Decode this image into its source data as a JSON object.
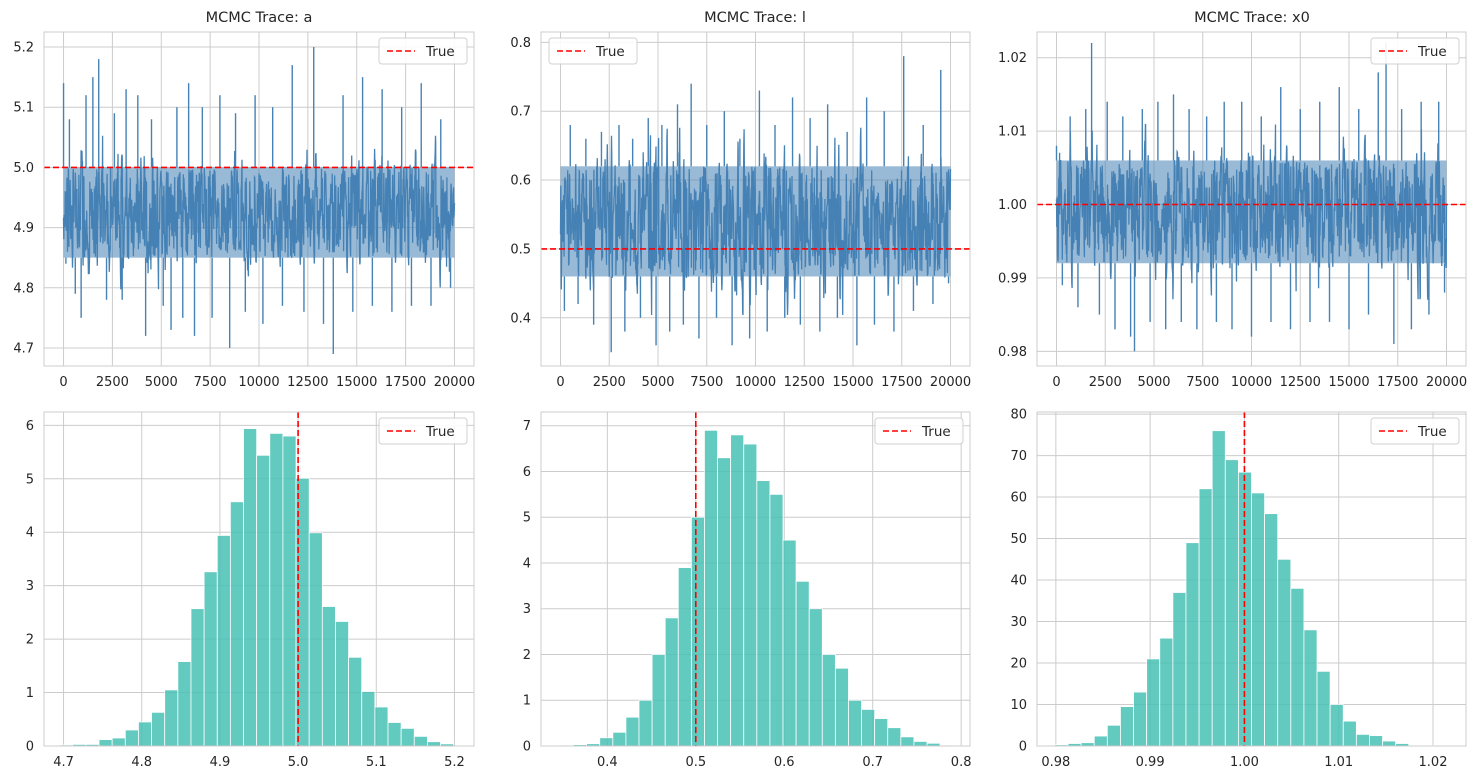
{
  "chart_data": [
    {
      "type": "line",
      "title": "MCMC Trace: a",
      "xlabel": "",
      "ylabel": "",
      "xlim": [
        -1000,
        21000
      ],
      "ylim": [
        4.67,
        5.225
      ],
      "xticks": [
        0,
        2500,
        5000,
        7500,
        10000,
        12500,
        15000,
        17500,
        20000
      ],
      "xtick_labels": [
        "0",
        "2500",
        "5000",
        "7500",
        "10000",
        "12500",
        "15000",
        "17500",
        "20000"
      ],
      "yticks": [
        4.7,
        4.8,
        4.9,
        5.0,
        5.1,
        5.2
      ],
      "ytick_labels": [
        "4.7",
        "4.8",
        "4.9",
        "5.0",
        "5.1",
        "5.2"
      ],
      "grid": true,
      "series": [
        {
          "x_range": [
            0,
            20000
          ],
          "band_low": 4.85,
          "band_high": 5.0,
          "spikes": [
            [
              0,
              5.14
            ],
            [
              120,
              4.84
            ],
            [
              300,
              5.08
            ],
            [
              600,
              4.79
            ],
            [
              900,
              4.75
            ],
            [
              1150,
              5.12
            ],
            [
              1500,
              5.15
            ],
            [
              1800,
              5.18
            ],
            [
              2200,
              4.78
            ],
            [
              2600,
              5.09
            ],
            [
              3000,
              4.78
            ],
            [
              3200,
              5.13
            ],
            [
              3800,
              5.12
            ],
            [
              4200,
              4.72
            ],
            [
              4500,
              5.08
            ],
            [
              5100,
              4.77
            ],
            [
              5500,
              4.73
            ],
            [
              5800,
              5.1
            ],
            [
              6100,
              4.75
            ],
            [
              6400,
              5.14
            ],
            [
              6700,
              4.72
            ],
            [
              7100,
              5.1
            ],
            [
              7600,
              4.75
            ],
            [
              8000,
              5.12
            ],
            [
              8500,
              4.7
            ],
            [
              8800,
              5.09
            ],
            [
              9300,
              4.76
            ],
            [
              9800,
              5.12
            ],
            [
              10200,
              4.74
            ],
            [
              10700,
              5.1
            ],
            [
              11200,
              4.77
            ],
            [
              11700,
              5.17
            ],
            [
              12300,
              4.76
            ],
            [
              12800,
              5.2
            ],
            [
              13300,
              4.74
            ],
            [
              13800,
              4.69
            ],
            [
              14300,
              5.12
            ],
            [
              14800,
              4.76
            ],
            [
              15300,
              5.15
            ],
            [
              15800,
              4.77
            ],
            [
              16300,
              5.13
            ],
            [
              16800,
              4.76
            ],
            [
              17300,
              5.1
            ],
            [
              17800,
              4.77
            ],
            [
              18300,
              5.14
            ],
            [
              18800,
              4.77
            ],
            [
              19300,
              5.08
            ],
            [
              19800,
              4.8
            ]
          ]
        }
      ],
      "hline": {
        "value": 5.0,
        "label": "True"
      },
      "legend": "top-right"
    },
    {
      "type": "line",
      "title": "MCMC Trace: l",
      "xlabel": "",
      "ylabel": "",
      "xlim": [
        -1000,
        21000
      ],
      "ylim": [
        0.33,
        0.815
      ],
      "xticks": [
        0,
        2500,
        5000,
        7500,
        10000,
        12500,
        15000,
        17500,
        20000
      ],
      "xtick_labels": [
        "0",
        "2500",
        "5000",
        "7500",
        "10000",
        "12500",
        "15000",
        "17500",
        "20000"
      ],
      "yticks": [
        0.4,
        0.5,
        0.6,
        0.7,
        0.8
      ],
      "ytick_labels": [
        "0.4",
        "0.5",
        "0.6",
        "0.7",
        "0.8"
      ],
      "grid": true,
      "series": [
        {
          "x_range": [
            0,
            20000
          ],
          "band_low": 0.46,
          "band_high": 0.62,
          "spikes": [
            [
              0,
              0.62
            ],
            [
              200,
              0.41
            ],
            [
              500,
              0.68
            ],
            [
              900,
              0.42
            ],
            [
              1300,
              0.66
            ],
            [
              1700,
              0.39
            ],
            [
              2100,
              0.67
            ],
            [
              2600,
              0.35
            ],
            [
              3000,
              0.68
            ],
            [
              3300,
              0.38
            ],
            [
              3700,
              0.66
            ],
            [
              4100,
              0.4
            ],
            [
              4500,
              0.69
            ],
            [
              4900,
              0.36
            ],
            [
              5200,
              0.68
            ],
            [
              5600,
              0.38
            ],
            [
              6000,
              0.71
            ],
            [
              6300,
              0.39
            ],
            [
              6700,
              0.74
            ],
            [
              7100,
              0.37
            ],
            [
              7500,
              0.68
            ],
            [
              8000,
              0.4
            ],
            [
              8400,
              0.7
            ],
            [
              8800,
              0.36
            ],
            [
              9200,
              0.66
            ],
            [
              9700,
              0.37
            ],
            [
              10200,
              0.73
            ],
            [
              10600,
              0.38
            ],
            [
              11000,
              0.68
            ],
            [
              11500,
              0.4
            ],
            [
              11900,
              0.72
            ],
            [
              12300,
              0.39
            ],
            [
              12800,
              0.69
            ],
            [
              13300,
              0.38
            ],
            [
              13700,
              0.71
            ],
            [
              14200,
              0.4
            ],
            [
              14700,
              0.67
            ],
            [
              15200,
              0.36
            ],
            [
              15700,
              0.72
            ],
            [
              16100,
              0.39
            ],
            [
              16600,
              0.7
            ],
            [
              17100,
              0.38
            ],
            [
              17600,
              0.78
            ],
            [
              18100,
              0.41
            ],
            [
              18600,
              0.68
            ],
            [
              19100,
              0.42
            ],
            [
              19500,
              0.76
            ],
            [
              19900,
              0.45
            ]
          ]
        }
      ],
      "hline": {
        "value": 0.5,
        "label": "True"
      },
      "legend": "top-left"
    },
    {
      "type": "line",
      "title": "MCMC Trace: x0",
      "xlabel": "",
      "ylabel": "",
      "xlim": [
        -1000,
        21000
      ],
      "ylim": [
        0.978,
        1.0235
      ],
      "xticks": [
        0,
        2500,
        5000,
        7500,
        10000,
        12500,
        15000,
        17500,
        20000
      ],
      "xtick_labels": [
        "0",
        "2500",
        "5000",
        "7500",
        "10000",
        "12500",
        "15000",
        "17500",
        "20000"
      ],
      "yticks": [
        0.98,
        0.99,
        1.0,
        1.01,
        1.02
      ],
      "ytick_labels": [
        "0.98",
        "0.99",
        "1.00",
        "1.01",
        "1.02"
      ],
      "grid": true,
      "series": [
        {
          "x_range": [
            0,
            20000
          ],
          "band_low": 0.992,
          "band_high": 1.006,
          "spikes": [
            [
              0,
              1.008
            ],
            [
              300,
              0.989
            ],
            [
              700,
              1.012
            ],
            [
              1100,
              0.986
            ],
            [
              1500,
              1.013
            ],
            [
              1800,
              1.022
            ],
            [
              2200,
              0.985
            ],
            [
              2600,
              1.014
            ],
            [
              3000,
              0.983
            ],
            [
              3400,
              1.012
            ],
            [
              3800,
              0.982
            ],
            [
              4000,
              0.98
            ],
            [
              4400,
              1.013
            ],
            [
              4800,
              0.984
            ],
            [
              5200,
              1.014
            ],
            [
              5600,
              0.983
            ],
            [
              6000,
              1.015
            ],
            [
              6400,
              0.984
            ],
            [
              6800,
              1.013
            ],
            [
              7200,
              0.983
            ],
            [
              7700,
              1.012
            ],
            [
              8200,
              0.984
            ],
            [
              8600,
              1.014
            ],
            [
              9000,
              0.983
            ],
            [
              9500,
              1.014
            ],
            [
              10000,
              0.982
            ],
            [
              10500,
              1.012
            ],
            [
              11000,
              0.984
            ],
            [
              11500,
              1.016
            ],
            [
              12000,
              0.983
            ],
            [
              12500,
              1.013
            ],
            [
              13000,
              0.984
            ],
            [
              13500,
              1.014
            ],
            [
              14000,
              0.984
            ],
            [
              14500,
              1.016
            ],
            [
              15000,
              0.983
            ],
            [
              15500,
              1.013
            ],
            [
              16000,
              0.985
            ],
            [
              16500,
              1.018
            ],
            [
              16900,
              1.022
            ],
            [
              17300,
              0.981
            ],
            [
              17700,
              1.013
            ],
            [
              18200,
              0.983
            ],
            [
              18700,
              1.014
            ],
            [
              19100,
              0.985
            ],
            [
              19600,
              1.014
            ],
            [
              19900,
              0.988
            ]
          ]
        }
      ],
      "hline": {
        "value": 1.0,
        "label": "True"
      },
      "legend": "top-right"
    },
    {
      "type": "bar",
      "title": "",
      "xlabel": "",
      "ylabel": "",
      "xlim": [
        4.675,
        5.225
      ],
      "ylim": [
        0,
        6.25
      ],
      "xticks": [
        4.7,
        4.8,
        4.9,
        5.0,
        5.1,
        5.2
      ],
      "xtick_labels": [
        "4.7",
        "4.8",
        "4.9",
        "5.0",
        "5.1",
        "5.2"
      ],
      "yticks": [
        0,
        1,
        2,
        3,
        4,
        5,
        6
      ],
      "ytick_labels": [
        "0",
        "1",
        "2",
        "3",
        "4",
        "5",
        "6"
      ],
      "grid": true,
      "bin_start": 4.695,
      "bin_width": 0.0168,
      "values": [
        0.02,
        0.03,
        0.03,
        0.12,
        0.15,
        0.3,
        0.45,
        0.63,
        1.05,
        1.58,
        2.57,
        3.26,
        3.94,
        4.57,
        5.94,
        5.44,
        5.85,
        5.8,
        5.01,
        3.99,
        2.61,
        2.33,
        1.66,
        1.02,
        0.73,
        0.44,
        0.33,
        0.18,
        0.08,
        0.04
      ],
      "vline": {
        "value": 5.0,
        "label": "True"
      },
      "legend": "top-right"
    },
    {
      "type": "bar",
      "title": "",
      "xlabel": "",
      "ylabel": "",
      "xlim": [
        0.325,
        0.81
      ],
      "ylim": [
        0,
        7.3
      ],
      "xticks": [
        0.4,
        0.5,
        0.6,
        0.7,
        0.8
      ],
      "xtick_labels": [
        "0.4",
        "0.5",
        "0.6",
        "0.7",
        "0.8"
      ],
      "yticks": [
        0,
        1,
        2,
        3,
        4,
        5,
        6,
        7
      ],
      "ytick_labels": [
        "0",
        "1",
        "2",
        "3",
        "4",
        "5",
        "6",
        "7"
      ],
      "grid": true,
      "bin_start": 0.347,
      "bin_width": 0.0148,
      "values": [
        0.02,
        0.03,
        0.05,
        0.18,
        0.3,
        0.63,
        1.0,
        2.0,
        2.8,
        3.9,
        5.0,
        6.9,
        6.3,
        6.8,
        6.6,
        5.8,
        5.5,
        4.5,
        3.6,
        3.0,
        2.0,
        1.7,
        1.0,
        0.8,
        0.6,
        0.4,
        0.2,
        0.1,
        0.06,
        0.02
      ],
      "vline": {
        "value": 0.5,
        "label": "True"
      },
      "legend": "top-right"
    },
    {
      "type": "bar",
      "title": "",
      "xlabel": "",
      "ylabel": "",
      "xlim": [
        0.978,
        1.0235
      ],
      "ylim": [
        0,
        80.5
      ],
      "xticks": [
        0.98,
        0.99,
        1.0,
        1.01,
        1.02
      ],
      "xtick_labels": [
        "0.98",
        "0.99",
        "1.00",
        "1.01",
        "1.02"
      ],
      "yticks": [
        0,
        10,
        20,
        30,
        40,
        50,
        60,
        70,
        80
      ],
      "ytick_labels": [
        "0",
        "10",
        "20",
        "30",
        "40",
        "50",
        "60",
        "70",
        "80"
      ],
      "grid": true,
      "bin_start": 0.9799,
      "bin_width": 0.00139,
      "values": [
        0.3,
        0.6,
        0.8,
        2.4,
        5.0,
        9.5,
        13,
        21,
        26,
        37,
        49,
        62,
        76,
        69,
        66,
        61,
        56,
        45,
        38,
        28,
        18,
        10,
        6,
        2.8,
        2.5,
        1.2,
        0.6,
        0.2,
        0.1,
        0.05
      ],
      "vline": {
        "value": 1.0,
        "label": "True"
      },
      "legend": "top-right"
    }
  ],
  "colors": {
    "trace": "#4682b4",
    "hist": "#48c1b6",
    "true_line": "#ff0000",
    "grid": "#cccccc",
    "frame": "#cccccc"
  }
}
